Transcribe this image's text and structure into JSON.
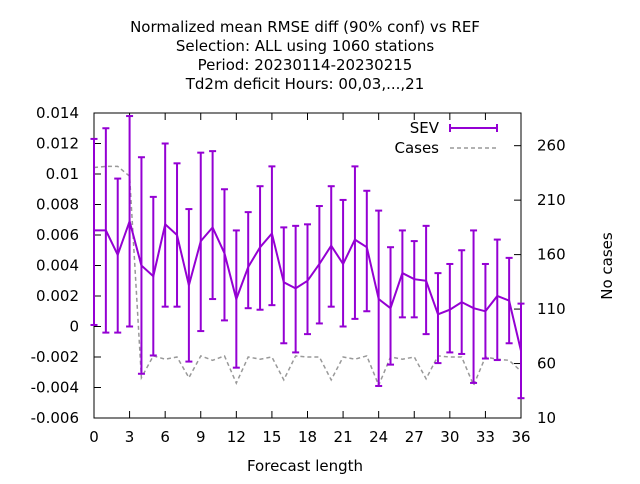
{
  "chart_data": {
    "type": "line",
    "title_lines": [
      "Normalized mean RMSE diff (90% conf) vs REF",
      "Selection: ALL using  1060 stations",
      "Period: 20230114-20230215",
      "Td2m deficit   Hours:  00,03,...,21"
    ],
    "xlabel": "Forecast length",
    "ylabel_right": "No cases",
    "xlim": [
      0,
      36
    ],
    "ylim": [
      -0.006,
      0.014
    ],
    "y2lim": [
      10,
      290
    ],
    "x_ticks": [
      "0",
      "3",
      "6",
      "9",
      "12",
      "15",
      "18",
      "21",
      "24",
      "27",
      "30",
      "33",
      "36"
    ],
    "y_ticks": [
      "0.014",
      "0.012",
      "0.01",
      "0.008",
      "0.006",
      "0.004",
      "0.002",
      "0",
      "-0.002",
      "-0.004",
      "-0.006"
    ],
    "y2_ticks": [
      "260",
      "210",
      "160",
      "110",
      "60",
      "10"
    ],
    "grid": false,
    "legend_position": "top-right",
    "series": [
      {
        "name": "SEV",
        "color": "#9400d3",
        "style": "line-errorbars",
        "x": [
          0,
          1,
          2,
          3,
          4,
          5,
          6,
          7,
          8,
          9,
          10,
          11,
          12,
          13,
          14,
          15,
          16,
          17,
          18,
          19,
          20,
          21,
          22,
          23,
          24,
          25,
          26,
          27,
          28,
          29,
          30,
          31,
          32,
          33,
          34,
          35,
          36
        ],
        "y": [
          0.0063,
          0.0063,
          0.0047,
          0.0069,
          0.004,
          0.0033,
          0.0067,
          0.006,
          0.0027,
          0.0056,
          0.0065,
          0.0048,
          0.0018,
          0.0039,
          0.0052,
          0.0061,
          0.0029,
          0.0025,
          0.003,
          0.0041,
          0.0053,
          0.0041,
          0.0057,
          0.0052,
          0.0018,
          0.0012,
          0.0035,
          0.0031,
          0.003,
          0.0008,
          0.0011,
          0.0016,
          0.0012,
          0.001,
          0.002,
          0.0017,
          -0.0016
        ],
        "ylow": [
          0.0001,
          -0.0004,
          -0.0004,
          0.0,
          -0.0031,
          -0.0019,
          0.0013,
          0.0013,
          -0.0023,
          -0.0003,
          0.0018,
          0.0004,
          -0.0027,
          0.0012,
          0.0011,
          0.0014,
          -0.0011,
          -0.0017,
          -0.0005,
          0.0002,
          0.0013,
          0.0,
          0.0005,
          0.001,
          -0.0039,
          -0.0025,
          0.0006,
          0.0006,
          -0.0005,
          -0.0024,
          -0.0017,
          -0.0018,
          -0.0037,
          -0.0021,
          -0.0022,
          -0.0011,
          -0.0047
        ],
        "yhigh": [
          0.0123,
          0.013,
          0.0097,
          0.0138,
          0.0111,
          0.0085,
          0.012,
          0.0107,
          0.0077,
          0.0114,
          0.0115,
          0.009,
          0.0063,
          0.0075,
          0.0092,
          0.0105,
          0.0065,
          0.0066,
          0.0067,
          0.0079,
          0.0092,
          0.0083,
          0.0105,
          0.0089,
          0.0076,
          0.0052,
          0.0063,
          0.0056,
          0.0066,
          0.0035,
          0.0041,
          0.005,
          0.0063,
          0.0041,
          0.0057,
          0.0045,
          0.0015
        ]
      },
      {
        "name": "Cases",
        "color": "#999999",
        "style": "dashed",
        "axis": "right",
        "x": [
          0,
          1,
          2,
          3,
          4,
          5,
          6,
          7,
          8,
          9,
          10,
          11,
          12,
          13,
          14,
          15,
          16,
          17,
          18,
          19,
          20,
          21,
          22,
          23,
          24,
          25,
          26,
          27,
          28,
          29,
          30,
          31,
          32,
          33,
          34,
          35,
          36
        ],
        "y": [
          240,
          241,
          241,
          232,
          47,
          67,
          64,
          66,
          47,
          67,
          63,
          67,
          42,
          66,
          64,
          66,
          45,
          67,
          66,
          66,
          45,
          66,
          64,
          67,
          40,
          66,
          64,
          66,
          46,
          67,
          66,
          66,
          40,
          66,
          64,
          63,
          53
        ]
      }
    ]
  }
}
